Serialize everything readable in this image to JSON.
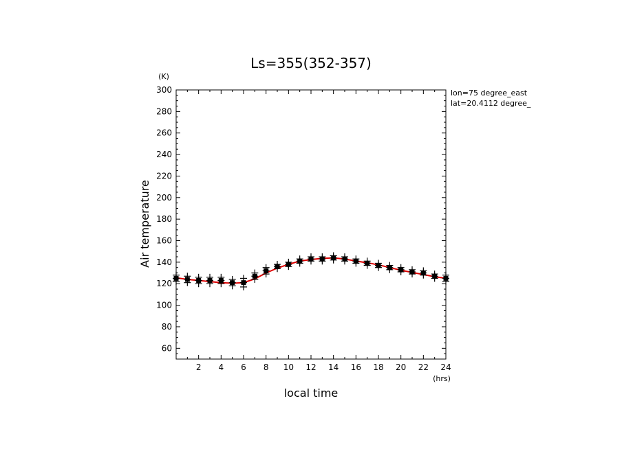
{
  "chart_data": {
    "type": "line",
    "title": "Ls=355(352-357)",
    "xlabel": "local time",
    "ylabel": "Air temperature",
    "x_unit": "(hrs)",
    "y_unit": "(K)",
    "xlim": [
      0,
      24
    ],
    "ylim": [
      50,
      300
    ],
    "x_ticks": [
      2,
      4,
      6,
      8,
      10,
      12,
      14,
      16,
      18,
      20,
      22,
      24
    ],
    "y_ticks": [
      60,
      80,
      100,
      120,
      140,
      160,
      180,
      200,
      220,
      240,
      260,
      280,
      300
    ],
    "grid": false,
    "annotations": [
      "lon=75 degree_east",
      "lat=20.4112 degree_"
    ],
    "colors": {
      "fit": "#dd0000",
      "points": "#000000"
    },
    "series": [
      {
        "style": "markers",
        "x": [
          0,
          1,
          2,
          3,
          4,
          5,
          6,
          7,
          8,
          9,
          10,
          11,
          12,
          13,
          14,
          15,
          16,
          17,
          18,
          19,
          20,
          21,
          22,
          23,
          24
        ],
        "y": [
          125,
          124,
          123,
          123,
          123,
          121,
          121,
          127,
          132,
          136,
          138,
          141,
          143,
          143,
          144,
          143,
          141,
          139,
          137,
          135,
          133,
          131,
          130,
          127,
          125
        ],
        "spread": [
          3,
          3,
          3,
          3,
          3,
          3,
          4,
          3,
          3,
          2,
          2,
          2,
          2,
          2,
          2,
          2,
          2,
          2,
          2,
          2,
          2,
          2,
          2,
          2,
          3
        ]
      },
      {
        "style": "line",
        "x": [
          0,
          1,
          2,
          3,
          4,
          5,
          6,
          7,
          8,
          9,
          10,
          11,
          12,
          13,
          14,
          15,
          16,
          17,
          18,
          19,
          20,
          21,
          22,
          23,
          24
        ],
        "y": [
          125.5,
          124,
          123,
          122,
          121,
          120.5,
          121,
          124.5,
          130,
          134.5,
          138,
          141,
          142.5,
          143.5,
          144,
          143,
          141,
          139.5,
          137.5,
          135,
          132.5,
          130.5,
          128.5,
          126.5,
          125
        ]
      }
    ]
  }
}
